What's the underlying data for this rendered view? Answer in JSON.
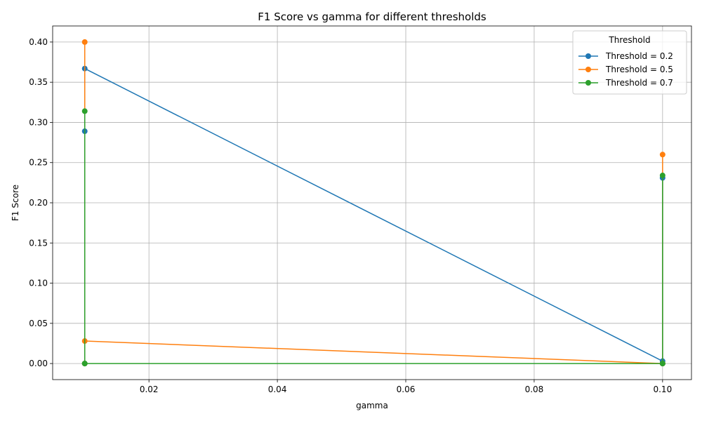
{
  "chart_data": {
    "type": "line",
    "title": "F1 Score vs gamma for different thresholds",
    "xlabel": "gamma",
    "ylabel": "F1 Score",
    "xlim": [
      0.005,
      0.1045
    ],
    "ylim": [
      -0.02,
      0.42
    ],
    "xticks": [
      0.02,
      0.04,
      0.06,
      0.08,
      0.1
    ],
    "xtick_labels": [
      "0.02",
      "0.04",
      "0.06",
      "0.08",
      "0.10"
    ],
    "yticks": [
      0.0,
      0.05,
      0.1,
      0.15,
      0.2,
      0.25,
      0.3,
      0.35,
      0.4
    ],
    "ytick_labels": [
      "0.00",
      "0.05",
      "0.10",
      "0.15",
      "0.20",
      "0.25",
      "0.30",
      "0.35",
      "0.40"
    ],
    "grid": true,
    "legend": {
      "title": "Threshold",
      "position": "top-right"
    },
    "series": [
      {
        "name": "Threshold = 0.2",
        "color": "#1f77b4",
        "x": [
          0.01,
          0.01,
          0.01,
          0.1,
          0.1,
          0.1
        ],
        "y": [
          0.289,
          0.0,
          0.367,
          0.003,
          0.0,
          0.231
        ]
      },
      {
        "name": "Threshold = 0.5",
        "color": "#ff7f0e",
        "x": [
          0.01,
          0.01,
          0.01,
          0.1,
          0.1,
          0.1
        ],
        "y": [
          0.0,
          0.4,
          0.028,
          0.0,
          0.26,
          0.0
        ]
      },
      {
        "name": "Threshold = 0.7",
        "color": "#2ca02c",
        "x": [
          0.01,
          0.01,
          0.01,
          0.1,
          0.1,
          0.1
        ],
        "y": [
          0.314,
          0.0,
          0.0,
          0.0,
          0.234,
          0.0
        ]
      }
    ]
  }
}
